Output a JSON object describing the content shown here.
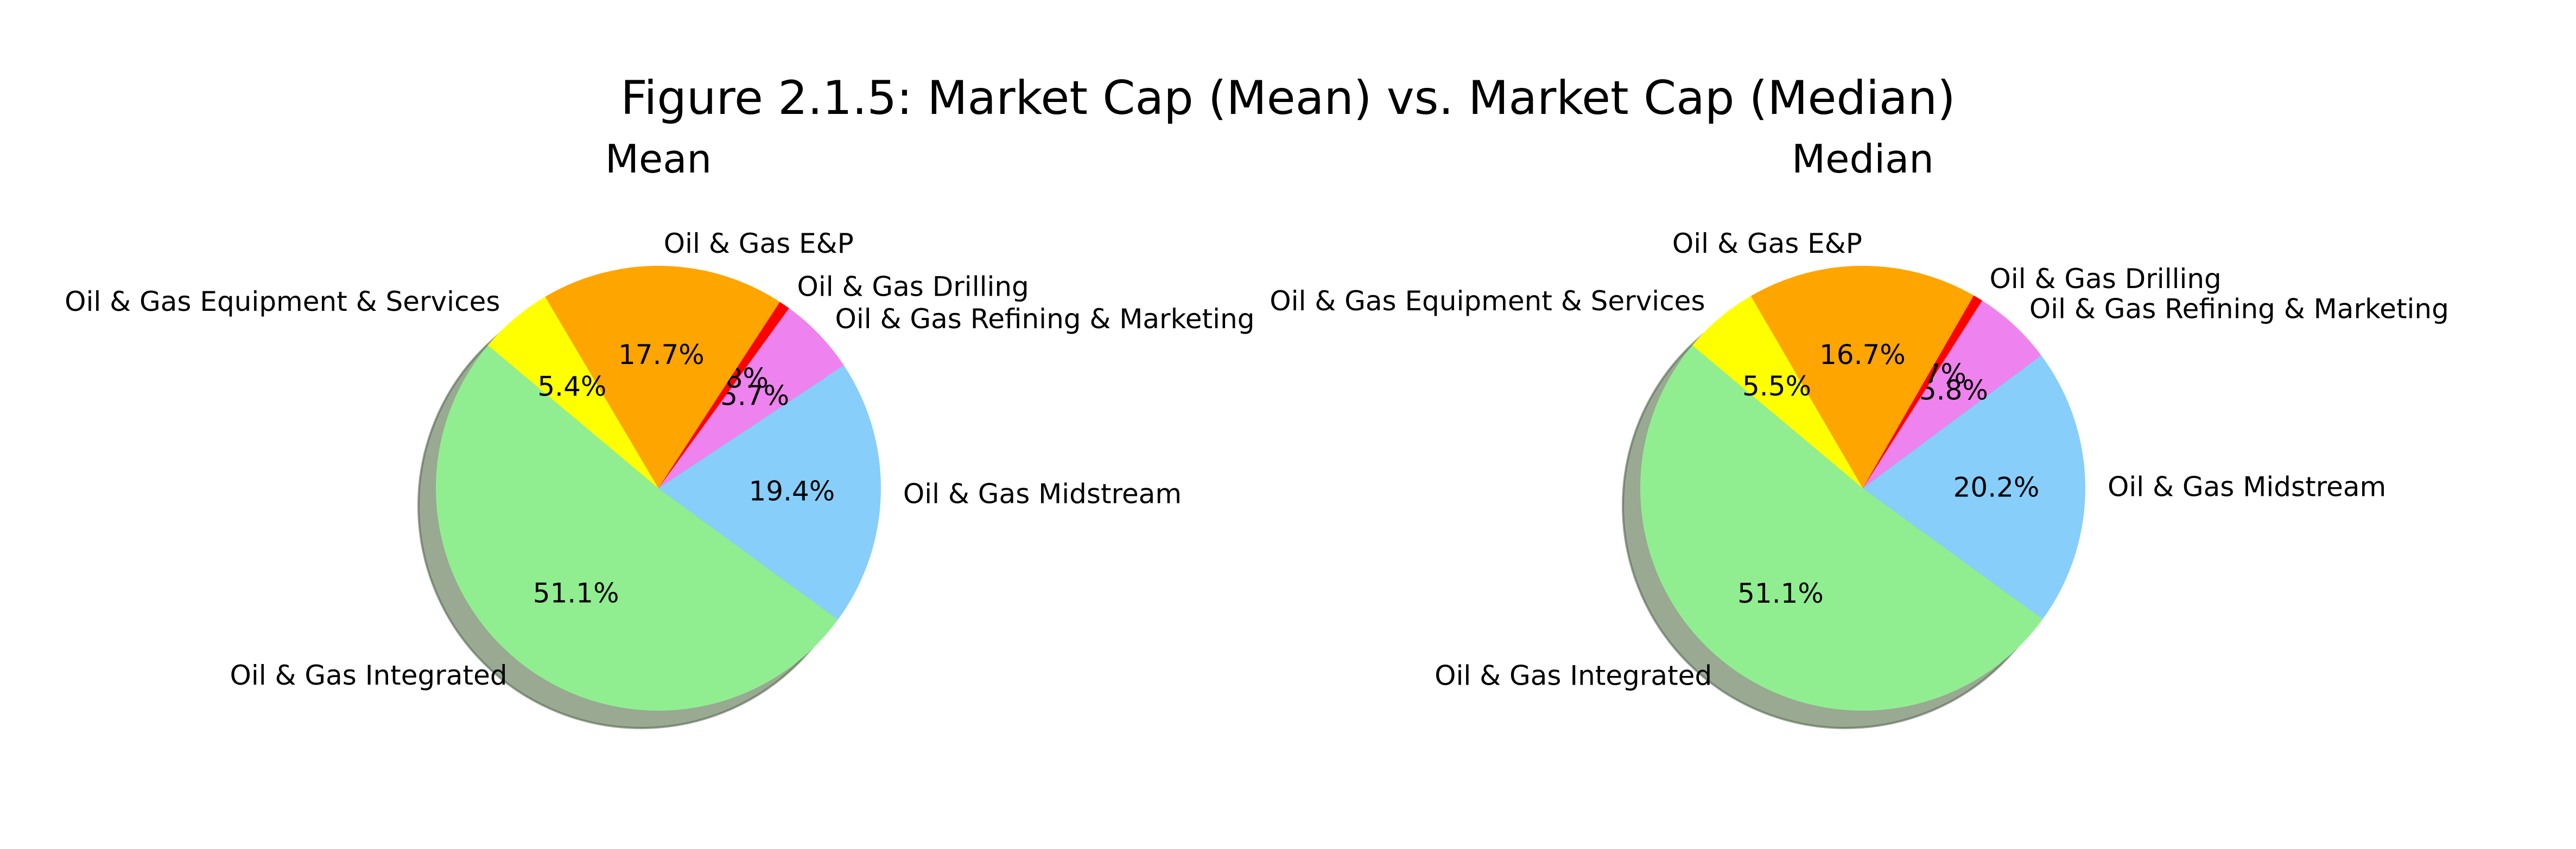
{
  "title": "Figure 2.1.5: Market Cap (Mean) vs. Market Cap (Median)",
  "chart_data": [
    {
      "type": "pie",
      "title": "Mean",
      "start_angle_deg": 140,
      "direction": "counterclockwise",
      "shadow": true,
      "categories": [
        "Oil & Gas Integrated",
        "Oil & Gas Midstream",
        "Oil & Gas Refining & Marketing",
        "Oil & Gas Drilling",
        "Oil & Gas E&P",
        "Oil & Gas Equipment & Services"
      ],
      "values": [
        51.1,
        19.4,
        5.7,
        0.8,
        17.7,
        5.4
      ],
      "value_labels": [
        "51.1%",
        "19.4%",
        "5.7%",
        "0.8%",
        "17.7%",
        "5.4%"
      ],
      "colors": [
        "#90ee90",
        "#87cefa",
        "#ee82ee",
        "#ff0000",
        "#ffa500",
        "#ffff00"
      ]
    },
    {
      "type": "pie",
      "title": "Median",
      "start_angle_deg": 140,
      "direction": "counterclockwise",
      "shadow": true,
      "categories": [
        "Oil & Gas Integrated",
        "Oil & Gas Midstream",
        "Oil & Gas Refining & Marketing",
        "Oil & Gas Drilling",
        "Oil & Gas E&P",
        "Oil & Gas Equipment & Services"
      ],
      "values": [
        51.1,
        20.2,
        5.8,
        0.7,
        16.7,
        5.5
      ],
      "value_labels": [
        "51.1%",
        "20.2%",
        "5.8%",
        "0.7%",
        "16.7%",
        "5.5%"
      ],
      "colors": [
        "#90ee90",
        "#87cefa",
        "#ee82ee",
        "#ff0000",
        "#ffa500",
        "#ffff00"
      ]
    }
  ]
}
